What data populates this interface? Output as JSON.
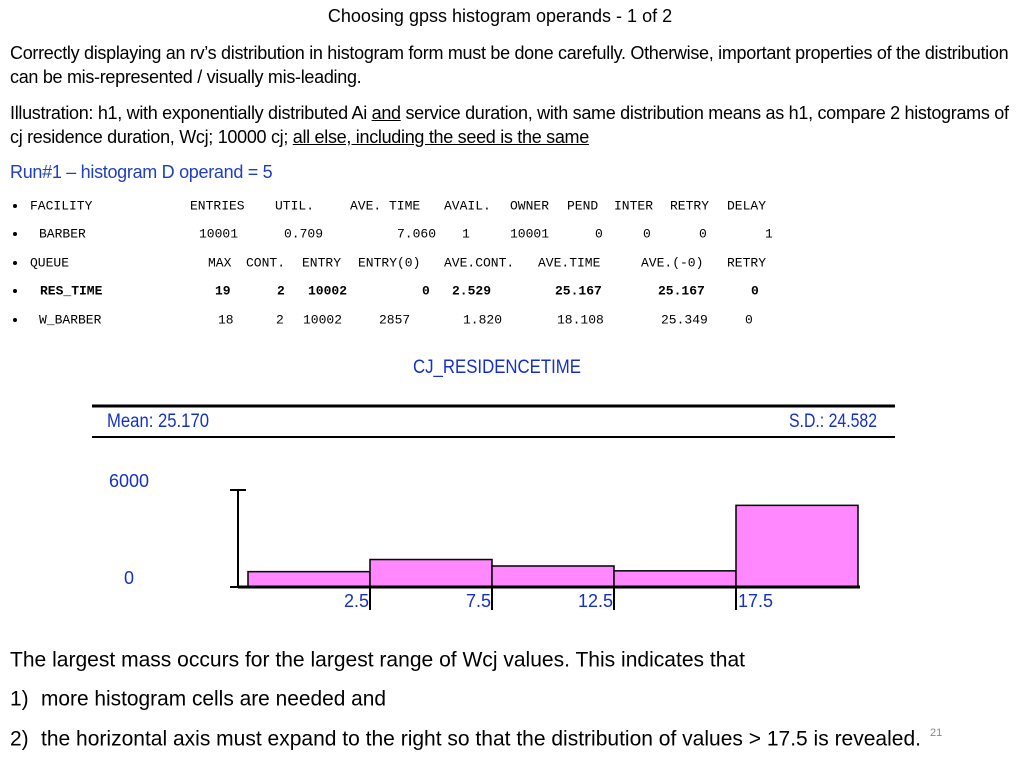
{
  "header": {
    "title": "Choosing gpss histogram operands - 1 of  2"
  },
  "intro": "Correctly displaying an rv’s distribution in histogram form must be done carefully. Otherwise, important properties of the distribution can be mis-represented / visually mis-leading.",
  "illustration": [
    "Illustration: h1, with exponentially distributed Ai ",
    "and",
    " service duration, with same distribution means as h1, compare 2 histograms of cj residence duration, Wcj; 10000 cj; ",
    "all else, including the seed is the same"
  ],
  "run": "Run#1 – histogram D operand = 5",
  "stats": {
    "rows": [
      [
        "FACILITY",
        "ENTRIES",
        "UTIL.",
        "AVE. TIME",
        "AVAIL.",
        "OWNER",
        "PEND",
        "INTER",
        "RETRY",
        "DELAY"
      ],
      [
        "BARBER",
        "10001",
        "0.709",
        "7.060",
        "1",
        "10001",
        "0",
        "0",
        "0",
        "1"
      ],
      [
        "QUEUE",
        "MAX",
        "CONT.",
        "ENTRY",
        "ENTRY(0)",
        "AVE.CONT.",
        "AVE.TIME",
        "AVE.(-0)",
        "RETRY"
      ],
      [
        "RES_TIME",
        "19",
        "2",
        "10002",
        "0",
        "2.529",
        "25.167",
        "25.167",
        "0"
      ],
      [
        "W_BARBER",
        "18",
        "2",
        "10002",
        "2857",
        "1.820",
        "18.108",
        "25.349",
        "0"
      ]
    ]
  },
  "chart_data": {
    "type": "histogram",
    "title": "CJ_RESIDENCETIME",
    "mean_label": "Mean: 25.170",
    "sd_label": "S.D.: 24.582",
    "bins": [
      -2.5,
      2.5,
      7.5,
      12.5,
      17.5,
      22.5
    ],
    "values": [
      950,
      1700,
      1300,
      1000,
      5050
    ],
    "color": "#ff88ff",
    "xlim": [
      -2.5,
      22.5
    ],
    "ylim": [
      0,
      6000
    ],
    "xticks": [
      2.5,
      7.5,
      12.5,
      17.5
    ],
    "yticks": [
      0,
      6000
    ]
  },
  "conclusion": {
    "text": "The largest mass occurs for the largest range of Wcj values. This indicates that",
    "markers": [
      "1)",
      "2)"
    ],
    "items": [
      "more histogram cells are needed and",
      "the horizontal axis must expand to the right so that the distribution of values > 17.5 is revealed."
    ]
  },
  "page_number": "21"
}
